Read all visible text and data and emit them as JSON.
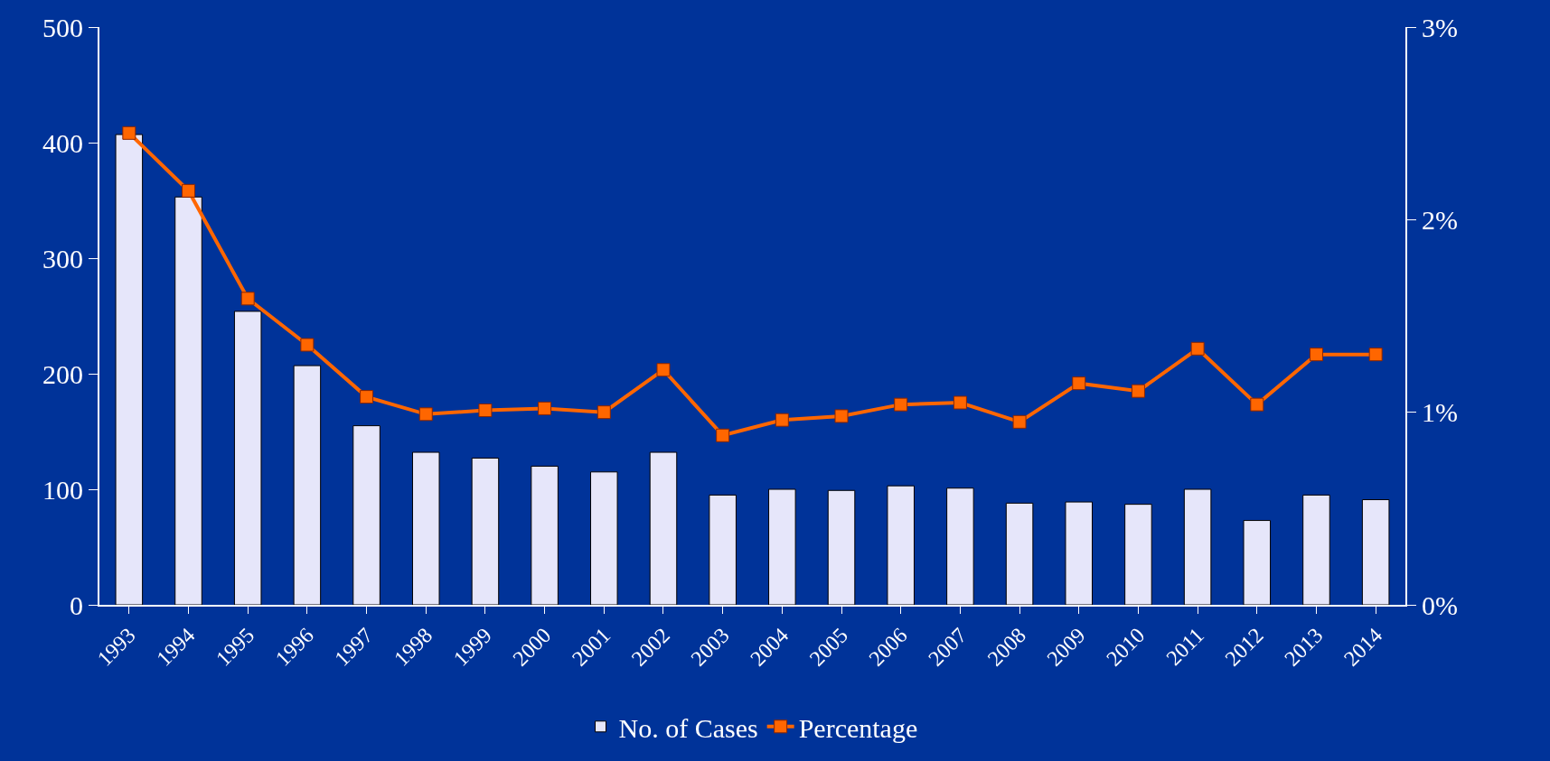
{
  "chart_data": {
    "type": "bar",
    "categories": [
      "1993",
      "1994",
      "1995",
      "1996",
      "1997",
      "1998",
      "1999",
      "2000",
      "2001",
      "2002",
      "2003",
      "2004",
      "2005",
      "2006",
      "2007",
      "2008",
      "2009",
      "2010",
      "2011",
      "2012",
      "2013",
      "2014"
    ],
    "series": [
      {
        "name": "No. of Cases",
        "color": "#e6e6fa",
        "values": [
          407,
          353,
          254,
          207,
          155,
          132,
          127,
          120,
          115,
          132,
          95,
          100,
          99,
          103,
          101,
          88,
          89,
          87,
          100,
          73,
          95,
          91
        ]
      },
      {
        "name": "Percentage",
        "type": "line",
        "axis": "y2",
        "color": "#ff6600",
        "values": [
          2.45,
          2.15,
          1.59,
          1.35,
          1.08,
          0.99,
          1.01,
          1.02,
          1.0,
          1.22,
          0.88,
          0.96,
          0.98,
          1.04,
          1.05,
          0.95,
          1.15,
          1.11,
          1.33,
          1.04,
          1.3,
          1.3
        ]
      }
    ],
    "ylim": [
      0,
      500
    ],
    "yticks": [
      0,
      100,
      200,
      300,
      400,
      500
    ],
    "y2lim": [
      0,
      3
    ],
    "y2ticks": [
      {
        "value": 0,
        "label": "0%"
      },
      {
        "value": 1,
        "label": "1%"
      },
      {
        "value": 2,
        "label": "2%"
      },
      {
        "value": 3,
        "label": "3%"
      }
    ],
    "grid": false,
    "legend": "bottom",
    "marker": "square",
    "line_style": "solid"
  }
}
